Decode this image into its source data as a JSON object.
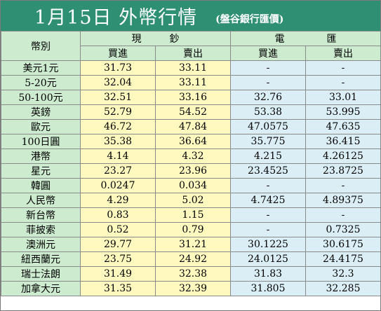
{
  "header": {
    "title": "1月15日 外幣行情",
    "source": "(盤谷銀行匯價)"
  },
  "table": {
    "corner_label": "幣別",
    "group_cash": "現鈔",
    "group_tt": "電匯",
    "buy_label": "買進",
    "sell_label": "賣出",
    "rows": [
      {
        "name": "美元1元",
        "cash_buy": "31.73",
        "cash_sell": "33.11",
        "tt_buy": "-",
        "tt_sell": "-"
      },
      {
        "name": "5-20元",
        "cash_buy": "32.04",
        "cash_sell": "33.11",
        "tt_buy": "-",
        "tt_sell": "-"
      },
      {
        "name": "50-100元",
        "cash_buy": "32.51",
        "cash_sell": "33.16",
        "tt_buy": "32.76",
        "tt_sell": "33.01"
      },
      {
        "name": "英鎊",
        "cash_buy": "52.79",
        "cash_sell": "54.52",
        "tt_buy": "53.38",
        "tt_sell": "53.995"
      },
      {
        "name": "歐元",
        "cash_buy": "46.72",
        "cash_sell": "47.84",
        "tt_buy": "47.0575",
        "tt_sell": "47.635"
      },
      {
        "name": "100日圓",
        "cash_buy": "35.38",
        "cash_sell": "36.64",
        "tt_buy": "35.775",
        "tt_sell": "36.415"
      },
      {
        "name": "港幣",
        "cash_buy": "4.14",
        "cash_sell": "4.32",
        "tt_buy": "4.215",
        "tt_sell": "4.26125"
      },
      {
        "name": "星元",
        "cash_buy": "23.27",
        "cash_sell": "23.96",
        "tt_buy": "23.4525",
        "tt_sell": "23.8725"
      },
      {
        "name": "韓圓",
        "cash_buy": "0.0247",
        "cash_sell": "0.034",
        "tt_buy": "-",
        "tt_sell": "-"
      },
      {
        "name": "人民幣",
        "cash_buy": "4.29",
        "cash_sell": "5.02",
        "tt_buy": "4.7425",
        "tt_sell": "4.89375"
      },
      {
        "name": "新台幣",
        "cash_buy": "0.83",
        "cash_sell": "1.15",
        "tt_buy": "-",
        "tt_sell": "-"
      },
      {
        "name": "菲披索",
        "cash_buy": "0.52",
        "cash_sell": "0.79",
        "tt_buy": "-",
        "tt_sell": "0.7325"
      },
      {
        "name": "澳洲元",
        "cash_buy": "29.77",
        "cash_sell": "31.21",
        "tt_buy": "30.1225",
        "tt_sell": "30.6175"
      },
      {
        "name": "紐西蘭元",
        "cash_buy": "23.75",
        "cash_sell": "24.92",
        "tt_buy": "24.0125",
        "tt_sell": "24.4175"
      },
      {
        "name": "瑞士法朗",
        "cash_buy": "31.49",
        "cash_sell": "32.38",
        "tt_buy": "31.83",
        "tt_sell": "32.3"
      },
      {
        "name": "加拿大元",
        "cash_buy": "31.35",
        "cash_sell": "32.39",
        "tt_buy": "31.805",
        "tt_sell": "32.285"
      }
    ]
  }
}
